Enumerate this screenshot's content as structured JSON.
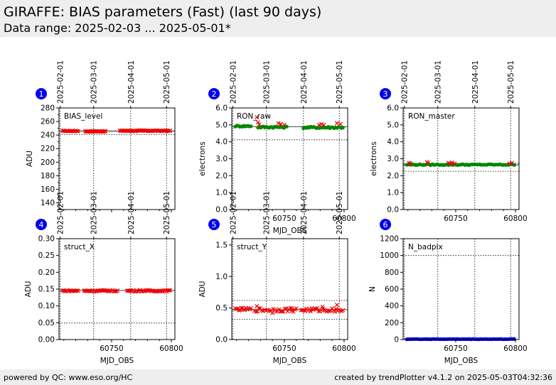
{
  "header": {
    "title": "GIRAFFE: BIAS parameters (Fast) (last 90 days)",
    "subtitle": "Data range: 2025-02-03 ... 2025-05-01*"
  },
  "footer": {
    "left": "powered by QC: www.eso.org/HC",
    "right": "created by trendPlotter v4.1.2 on 2025-05-03T04:32:36"
  },
  "colors": {
    "badge": "#0000ee",
    "red_marker": "#ee0000",
    "green_marker": "#008800",
    "header_bg": "#eeeeee"
  },
  "chart_data": [
    {
      "type": "scatter",
      "panel": "1",
      "label": "BIAS_level",
      "ylabel": "ADU",
      "xlabel": "",
      "xlim": [
        60706,
        60803
      ],
      "ylim": [
        130,
        280
      ],
      "yticks": [
        140,
        160,
        180,
        200,
        220,
        240,
        260,
        280
      ],
      "ytick_labels": [
        "140",
        "160",
        "180",
        "200",
        "220",
        "240",
        "260",
        "280"
      ],
      "xticks": [
        60750,
        60800
      ],
      "xtick_labels": [
        "",
        ""
      ],
      "top_dates": [
        "2025-02-01",
        "2025-03-01",
        "2025-04-01",
        "2025-05-01"
      ],
      "hlines": [
        {
          "y": 246,
          "style": "solid"
        },
        {
          "y": 240.5,
          "style": "dotted"
        }
      ],
      "series": [
        {
          "marker": "x",
          "color": "red",
          "segments": [
            [
              60709,
              60722,
              246,
              0.5,
              14
            ],
            [
              60728,
              60745,
              245.5,
              0.5,
              22
            ],
            [
              60757,
              60799,
              246.3,
              0.6,
              44
            ]
          ]
        }
      ]
    },
    {
      "type": "scatter",
      "panel": "2",
      "label": "RON_raw",
      "ylabel": "electrons",
      "xlabel": "MJD_OBS",
      "xlim": [
        60706,
        60803
      ],
      "ylim": [
        0,
        6
      ],
      "yticks": [
        0,
        1,
        2,
        3,
        4,
        5,
        6
      ],
      "ytick_labels": [
        "0.0",
        "1.0",
        "2.0",
        "3.0",
        "4.0",
        "5.0",
        "6.0"
      ],
      "xticks": [
        60750,
        60800
      ],
      "xtick_labels": [
        "60750",
        "60800"
      ],
      "top_dates": [
        "2025-02-01",
        "2025-03-01",
        "2025-04-01",
        "2025-05-01"
      ],
      "hlines": [
        {
          "y": 4.9,
          "style": "solid"
        },
        {
          "y": 4.12,
          "style": "dotted"
        }
      ],
      "series": [
        {
          "marker": "o",
          "color": "green",
          "segments": [
            [
              60709,
              60722,
              4.93,
              0.04,
              12
            ],
            [
              60728,
              60752,
              4.87,
              0.05,
              22
            ],
            [
              60766,
              60799,
              4.85,
              0.05,
              28
            ]
          ]
        },
        {
          "marker": "x",
          "color": "red",
          "points": [
            [
              60727,
              5.45
            ],
            [
              60728,
              5.15
            ],
            [
              60729,
              5.02
            ],
            [
              60745,
              5.1
            ],
            [
              60747,
              5.05
            ],
            [
              60750,
              5.0
            ],
            [
              60779,
              5.0
            ],
            [
              60781,
              5.05
            ],
            [
              60783,
              5.0
            ],
            [
              60794,
              5.1
            ],
            [
              60797,
              5.05
            ]
          ]
        }
      ]
    },
    {
      "type": "scatter",
      "panel": "3",
      "label": "RON_master",
      "ylabel": "electrons",
      "xlabel": "",
      "xlim": [
        60706,
        60803
      ],
      "ylim": [
        0,
        6
      ],
      "yticks": [
        0,
        1,
        2,
        3,
        4,
        5,
        6
      ],
      "ytick_labels": [
        "0.0",
        "1.0",
        "2.0",
        "3.0",
        "4.0",
        "5.0",
        "6.0"
      ],
      "xticks": [
        60750,
        60800
      ],
      "xtick_labels": [
        "60750",
        "60800"
      ],
      "top_dates": [
        "2025-02-01",
        "2025-03-01",
        "2025-04-01",
        "2025-05-01"
      ],
      "hlines": [
        {
          "y": 2.64,
          "style": "solid"
        },
        {
          "y": 2.73,
          "style": "dotted"
        },
        {
          "y": 2.26,
          "style": "dotted"
        }
      ],
      "series": [
        {
          "marker": "o",
          "color": "green",
          "segments": [
            [
              60709,
              60799,
              2.65,
              0.03,
              60
            ]
          ]
        },
        {
          "marker": "x",
          "color": "red",
          "points": [
            [
              60711,
              2.75
            ],
            [
              60712,
              2.72
            ],
            [
              60726,
              2.8
            ],
            [
              60727,
              2.75
            ],
            [
              60744,
              2.75
            ],
            [
              60745,
              2.72
            ],
            [
              60747,
              2.78
            ],
            [
              60749,
              2.72
            ],
            [
              60795,
              2.72
            ],
            [
              60797,
              2.75
            ]
          ]
        }
      ]
    },
    {
      "type": "scatter",
      "panel": "4",
      "label": "struct_X",
      "ylabel": "ADU",
      "xlabel": "MJD_OBS",
      "xlim": [
        60706,
        60803
      ],
      "ylim": [
        0,
        0.3
      ],
      "yticks": [
        0,
        0.05,
        0.1,
        0.15,
        0.2,
        0.25,
        0.3
      ],
      "ytick_labels": [
        "0.00",
        "0.05",
        "0.10",
        "0.15",
        "0.20",
        "0.25",
        "0.30"
      ],
      "xticks": [
        60750,
        60800
      ],
      "xtick_labels": [
        "60750",
        "60800"
      ],
      "top_dates": [
        "2025-02-01",
        "2025-03-01",
        "2025-04-01",
        "2025-05-01"
      ],
      "hlines": [
        {
          "y": 0.146,
          "style": "solid"
        },
        {
          "y": 0.049,
          "style": "dotted"
        }
      ],
      "series": [
        {
          "marker": "x",
          "color": "red",
          "segments": [
            [
              60709,
              60722,
              0.145,
              0.002,
              14
            ],
            [
              60727,
              60755,
              0.145,
              0.002,
              28
            ],
            [
              60763,
              60799,
              0.145,
              0.002,
              36
            ]
          ]
        }
      ]
    },
    {
      "type": "scatter",
      "panel": "5",
      "label": "struct_Y",
      "ylabel": "ADU",
      "xlabel": "MJD_OBS",
      "xlim": [
        60706,
        60803
      ],
      "ylim": [
        0,
        1.6
      ],
      "yticks": [
        0,
        0.5,
        1.0,
        1.5
      ],
      "ytick_labels": [
        "0.0",
        "0.5",
        "1.0",
        "1.5"
      ],
      "xticks": [
        60750,
        60800
      ],
      "xtick_labels": [
        "60750",
        "60800"
      ],
      "top_dates": [
        "2025-02-01",
        "2025-03-01",
        "2025-04-01",
        "2025-05-01"
      ],
      "hlines": [
        {
          "y": 0.475,
          "style": "solid"
        },
        {
          "y": 0.62,
          "style": "dotted"
        },
        {
          "y": 0.32,
          "style": "dotted"
        }
      ],
      "series": [
        {
          "marker": "x",
          "color": "red",
          "segments": [
            [
              60709,
              60722,
              0.48,
              0.02,
              14
            ],
            [
              60725,
              60760,
              0.47,
              0.03,
              30
            ],
            [
              60764,
              60799,
              0.47,
              0.03,
              32
            ]
          ],
          "points": [
            [
              60727,
              0.53
            ],
            [
              60740,
              0.42
            ],
            [
              60756,
              0.5
            ],
            [
              60782,
              0.52
            ],
            [
              60794,
              0.55
            ]
          ]
        }
      ]
    },
    {
      "type": "scatter",
      "panel": "6",
      "label": "N_badpix",
      "ylabel": "N",
      "xlabel": "MJD_OBS",
      "xlim": [
        60706,
        60803
      ],
      "ylim": [
        0,
        1200
      ],
      "yticks": [
        0,
        200,
        400,
        600,
        800,
        1000,
        1200
      ],
      "ytick_labels": [
        "0",
        "200",
        "400",
        "600",
        "800",
        "1000",
        "1200"
      ],
      "xticks": [
        60750,
        60800
      ],
      "xtick_labels": [
        "60750",
        "60800"
      ],
      "top_dates": [],
      "hlines": [
        {
          "y": 1000,
          "style": "dotted"
        }
      ],
      "series": [
        {
          "marker": "o",
          "color": "blue",
          "segments": [
            [
              60709,
              60799,
              5,
              2,
              58
            ]
          ]
        }
      ]
    }
  ]
}
